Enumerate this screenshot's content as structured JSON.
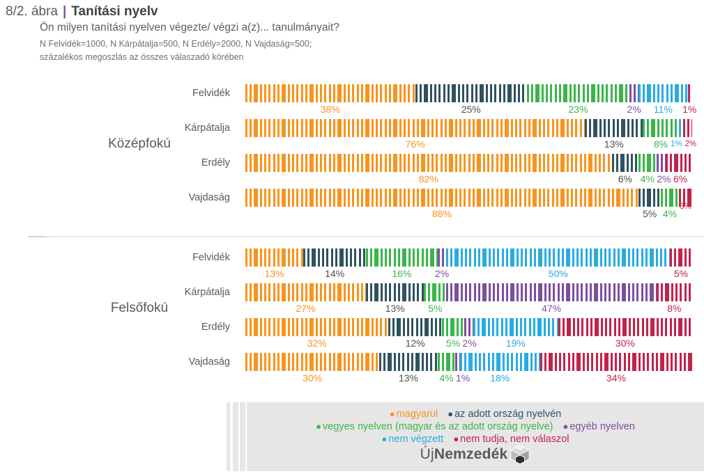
{
  "header": {
    "figure_label": "8/2. ábra",
    "separator": "|",
    "title": "Tanítási nyelv",
    "question": "Ön milyen tanítási nyelven végezte/ végzi a(z)... tanulmányait?",
    "sample_note": "N Felvidék=1000, N Kárpátalja=500, N Erdély=2000, N Vajdaság=500;",
    "basis_note": "százalékos megoszlás az összes válaszadó körében"
  },
  "colors": {
    "magyarul": "#F7941E",
    "orszag": "#2F5261",
    "vegyes": "#3BB54A",
    "egyeb": "#7D4FA0",
    "nem_vegzett": "#29ABE2",
    "nem_tudja": "#C2234B",
    "neutral_value_label": "#4D4D4D",
    "separator_accent": "#7D4FA0",
    "legend_background": "#E6E6E6"
  },
  "chart_data": {
    "type": "bar",
    "variant": "horizontal-stacked-striped",
    "unit": "%",
    "xlim": [
      0,
      100
    ],
    "grid": false,
    "legend_position": "bottom",
    "category_keys": [
      "magyarul",
      "orszag",
      "vegyes",
      "egyeb",
      "nem_vegzett",
      "nem_tudja"
    ],
    "category_labels": [
      "magyarul",
      "az adott ország nyelvén",
      "vegyes nyelven (magyar és az adott ország nyelve)",
      "egyéb nyelven",
      "nem végzett",
      "nem tudja, nem válaszol"
    ],
    "groups": [
      {
        "label": "Középfokú",
        "rows": [
          {
            "label": "Felvidék",
            "segments": [
              {
                "key": "magyarul",
                "value": 38
              },
              {
                "key": "orszag",
                "value": 25
              },
              {
                "key": "vegyes",
                "value": 23
              },
              {
                "key": "egyeb",
                "value": 2
              },
              {
                "key": "nem_vegzett",
                "value": 11
              },
              {
                "key": "nem_tudja",
                "value": 1
              }
            ]
          },
          {
            "label": "Kárpátalja",
            "segments": [
              {
                "key": "magyarul",
                "value": 76
              },
              {
                "key": "orszag",
                "value": 13
              },
              {
                "key": "vegyes",
                "value": 8
              },
              {
                "key": "nem_vegzett",
                "value": 1,
                "label_style": "small"
              },
              {
                "key": "nem_tudja",
                "value": 2,
                "label_style": "small"
              }
            ]
          },
          {
            "label": "Erdély",
            "segments": [
              {
                "key": "magyarul",
                "value": 82
              },
              {
                "key": "orszag",
                "value": 6
              },
              {
                "key": "vegyes",
                "value": 4
              },
              {
                "key": "egyeb",
                "value": 2
              },
              {
                "key": "nem_tudja",
                "value": 6
              }
            ]
          },
          {
            "label": "Vajdaság",
            "segments": [
              {
                "key": "magyarul",
                "value": 88
              },
              {
                "key": "orszag",
                "value": 5
              },
              {
                "key": "vegyes",
                "value": 4
              },
              {
                "key": "nem_tudja",
                "value": 3,
                "label_style": "raised"
              }
            ]
          }
        ]
      },
      {
        "label": "Felsőfokú",
        "rows": [
          {
            "label": "Felvidék",
            "segments": [
              {
                "key": "magyarul",
                "value": 13
              },
              {
                "key": "orszag",
                "value": 14
              },
              {
                "key": "vegyes",
                "value": 16
              },
              {
                "key": "egyeb",
                "value": 2
              },
              {
                "key": "nem_vegzett",
                "value": 50
              },
              {
                "key": "nem_tudja",
                "value": 5
              }
            ]
          },
          {
            "label": "Kárpátalja",
            "segments": [
              {
                "key": "magyarul",
                "value": 27
              },
              {
                "key": "orszag",
                "value": 13
              },
              {
                "key": "vegyes",
                "value": 5
              },
              {
                "key": "egyeb",
                "value": 47
              },
              {
                "key": "nem_tudja",
                "value": 8
              }
            ]
          },
          {
            "label": "Erdély",
            "segments": [
              {
                "key": "magyarul",
                "value": 32
              },
              {
                "key": "orszag",
                "value": 12
              },
              {
                "key": "vegyes",
                "value": 5
              },
              {
                "key": "egyeb",
                "value": 2
              },
              {
                "key": "nem_vegzett",
                "value": 19
              },
              {
                "key": "nem_tudja",
                "value": 30
              }
            ]
          },
          {
            "label": "Vajdaság",
            "segments": [
              {
                "key": "magyarul",
                "value": 30
              },
              {
                "key": "orszag",
                "value": 13
              },
              {
                "key": "vegyes",
                "value": 4
              },
              {
                "key": "egyeb",
                "value": 1
              },
              {
                "key": "nem_vegzett",
                "value": 18
              },
              {
                "key": "nem_tudja",
                "value": 34
              }
            ]
          }
        ]
      }
    ]
  },
  "legend": {
    "lines": [
      [
        {
          "key": "magyarul",
          "label": "magyarul"
        },
        {
          "key": "orszag",
          "label": "az adott ország nyelvén"
        }
      ],
      [
        {
          "key": "vegyes",
          "label": "vegyes nyelven (magyar és az adott ország nyelve)"
        },
        {
          "key": "egyeb",
          "label": "egyéb nyelven"
        }
      ],
      [
        {
          "key": "nem_vegzett",
          "label": "nem végzett"
        },
        {
          "key": "nem_tudja",
          "label": "nem tudja, nem válaszol"
        }
      ]
    ]
  },
  "logo": {
    "prefix": "Új",
    "name": "Nemzedék"
  }
}
